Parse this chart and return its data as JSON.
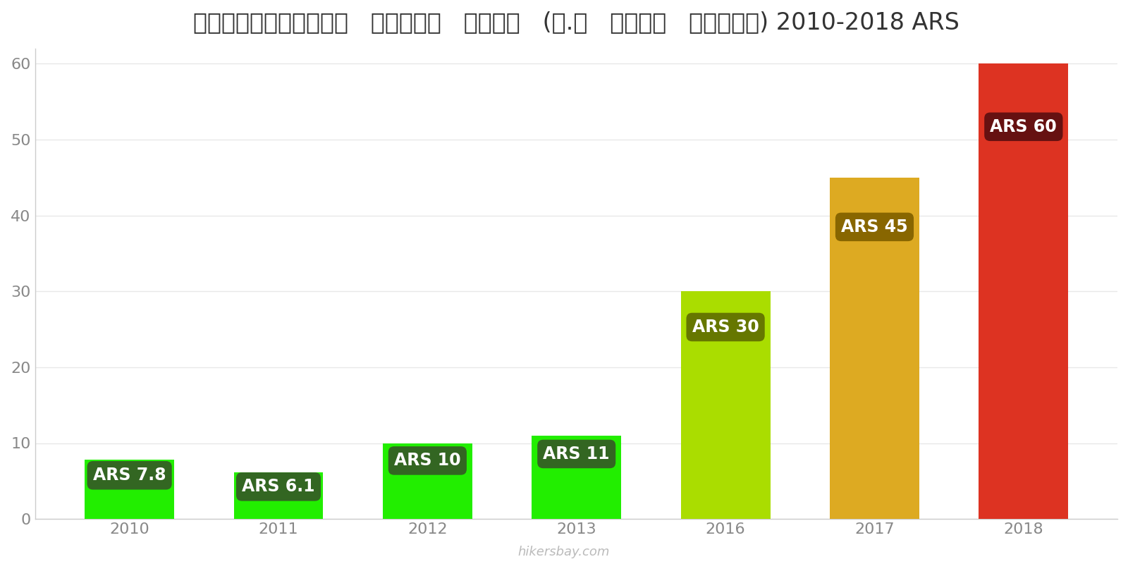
{
  "years": [
    "2010",
    "2011",
    "2012",
    "2013",
    "2016",
    "2017",
    "2018"
  ],
  "values": [
    7.8,
    6.1,
    10,
    11,
    30,
    45,
    60
  ],
  "bar_colors": [
    "#22ee00",
    "#22ee00",
    "#22ee00",
    "#22ee00",
    "#aadd00",
    "#ddaa22",
    "#dd3322"
  ],
  "label_bg_colors": [
    "#336622",
    "#336622",
    "#336622",
    "#336622",
    "#667700",
    "#886600",
    "#661111"
  ],
  "label_text_color": "#ffffff",
  "title": "अर्जेण्टीना   घरेलू   बियर   (०.९   लीटर   मसौदा) 2010-2018 ARS",
  "ylim": [
    0,
    62
  ],
  "yticks": [
    0,
    10,
    20,
    30,
    40,
    50,
    60
  ],
  "watermark": "hikersbay.com",
  "bar_width": 0.6,
  "label_prefix": "ARS ",
  "label_values": [
    "7.8",
    "6.1",
    "10",
    "11",
    "30",
    "45",
    "60"
  ]
}
